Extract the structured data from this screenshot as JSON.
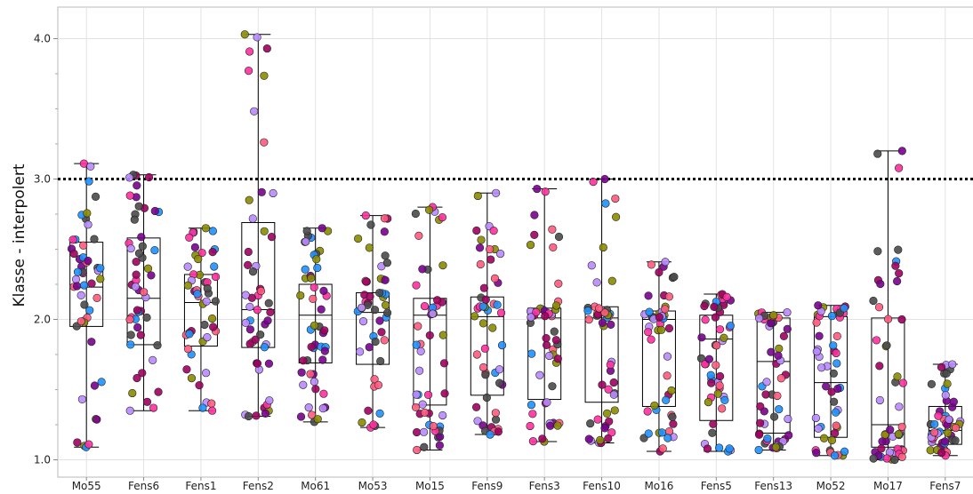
{
  "chart_data": {
    "type": "boxplot",
    "ylabel": "Klasse - interpolert",
    "xlabel": "",
    "ylim": [
      0.95,
      4.25
    ],
    "yticks": [
      1.0,
      2.0,
      3.0,
      4.0
    ],
    "ytick_labels": [
      "1.0",
      "2.0",
      "3.0",
      "4.0"
    ],
    "reference_line": 3.0,
    "grid": true,
    "point_colors": [
      "#4a4a4a",
      "#1e90ff",
      "#ff5a7e",
      "#ff2fa0",
      "#7a0090",
      "#b98aff",
      "#8b8b00",
      "#a00060"
    ],
    "categories": [
      "Mo55",
      "Fens6",
      "Fens1",
      "Fens2",
      "Mo61",
      "Mo53",
      "Mo15",
      "Fens9",
      "Fens3",
      "Fens10",
      "Mo16",
      "Fens5",
      "Fens13",
      "Mo52",
      "Mo17",
      "Fens7"
    ],
    "boxes": [
      {
        "min": 1.09,
        "q1": 1.95,
        "median": 2.23,
        "q3": 2.55,
        "max": 3.11
      },
      {
        "min": 1.35,
        "q1": 1.82,
        "median": 2.15,
        "q3": 2.58,
        "max": 3.03
      },
      {
        "min": 1.35,
        "q1": 1.81,
        "median": 2.12,
        "q3": 2.32,
        "max": 2.65
      },
      {
        "min": 1.31,
        "q1": 1.8,
        "median": 2.07,
        "q3": 2.69,
        "max": 4.03
      },
      {
        "min": 1.27,
        "q1": 1.69,
        "median": 2.03,
        "q3": 2.25,
        "max": 2.65
      },
      {
        "min": 1.23,
        "q1": 1.68,
        "median": 2.05,
        "q3": 2.19,
        "max": 2.74
      },
      {
        "min": 1.07,
        "q1": 1.39,
        "median": 2.03,
        "q3": 2.15,
        "max": 2.8
      },
      {
        "min": 1.18,
        "q1": 1.46,
        "median": 2.02,
        "q3": 2.16,
        "max": 2.9
      },
      {
        "min": 1.13,
        "q1": 1.43,
        "median": 2.01,
        "q3": 2.08,
        "max": 2.93
      },
      {
        "min": 1.12,
        "q1": 1.41,
        "median": 2.01,
        "q3": 2.09,
        "max": 3.0
      },
      {
        "min": 1.06,
        "q1": 1.38,
        "median": 2.0,
        "q3": 2.06,
        "max": 2.41
      },
      {
        "min": 1.06,
        "q1": 1.28,
        "median": 1.86,
        "q3": 2.03,
        "max": 2.18
      },
      {
        "min": 1.07,
        "q1": 1.19,
        "median": 1.7,
        "q3": 2.01,
        "max": 2.05
      },
      {
        "min": 1.03,
        "q1": 1.16,
        "median": 1.55,
        "q3": 2.02,
        "max": 2.1
      },
      {
        "min": 1.0,
        "q1": 1.09,
        "median": 1.25,
        "q3": 2.01,
        "max": 3.2
      },
      {
        "min": 1.03,
        "q1": 1.11,
        "median": 1.21,
        "q3": 1.38,
        "max": 1.68
      }
    ]
  }
}
